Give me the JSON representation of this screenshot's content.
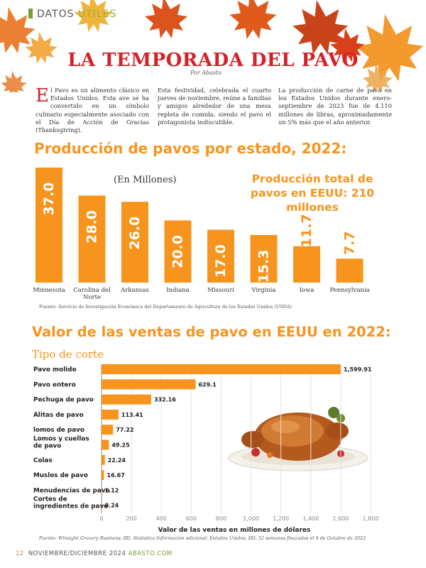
{
  "header": {
    "section_a": "DATOS ",
    "section_b": "ÚTILES",
    "title": "LA TEMPORADA DEL PAVO",
    "byline": "Por Abasto"
  },
  "intro": {
    "col1_cap": "E",
    "col1": "l Pavo es un alimento clásico en Estados Unidos. Esta ave se ha convertido en un símbolo culinario especialmente asociado con el Día de Acción de Gracias (Thanksgiving).",
    "col2": "Esta festividad, celebrada el cuarto jueves de noviembre, reúne a familias y amigos alrededor de una mesa repleta de comida, siendo el pavo el protagonista indiscutible.",
    "col3": "La producción de carne de pavo en los Estados Unidos durante enero-septiembre de 2023 fue de 4.110 millones de libras, aproximadamente un 5% más que el año anterior."
  },
  "colors": {
    "orange": "#f7941d",
    "red": "#d2232a",
    "green": "#7a9a3a"
  },
  "chart_data": [
    {
      "type": "bar",
      "title": "Producción de pavos por estado, 2022:",
      "unit_note": "(En Millones)",
      "total_note": "Producción total de pavos en EEUU: 210 millones",
      "categories": [
        "Minnesota",
        "Carolina del Norte",
        "Arkansas",
        "Indiana",
        "Missouri",
        "Virginia",
        "Iowa",
        "Pennsylvania"
      ],
      "values": [
        37.0,
        28.0,
        26.0,
        20.0,
        17.0,
        15.3,
        11.7,
        7.7
      ],
      "value_labels": [
        "37.0",
        "28.0",
        "26.0",
        "20.0",
        "17.0",
        "15.3",
        "11.7",
        "7.7"
      ],
      "source": "Fuente: Servicio de Investigación Económica del Departamento de Agricultura de los Estados Unidos (USDA)"
    },
    {
      "type": "bar",
      "orientation": "horizontal",
      "title": "Valor de las ventas de pavo en EEUU en 2022:",
      "subtitle": "Tipo de corte",
      "categories": [
        "Pavo molido",
        "Pavo entero",
        "Pechuga de pavo",
        "Alitas de pavo",
        "lomos de pavo",
        "Lomos y cuellos de pavo",
        "Colas",
        "Muslos de pavo",
        "Menudencias de pavo",
        "Cortes de ingredientes de pavo"
      ],
      "values": [
        1599.91,
        629.1,
        332.16,
        113.41,
        77.22,
        49.25,
        22.24,
        16.67,
        1.12,
        0.24
      ],
      "value_labels": [
        "1,599.91",
        "629.1",
        "332.16",
        "113.41",
        "77.22",
        "49.25",
        "22.24",
        "16.67",
        "1.12",
        "0.24"
      ],
      "xlabel": "Valor de las ventas en millones de dólares",
      "xlim": [
        0,
        1800
      ],
      "xticks": [
        "0",
        "200",
        "400",
        "600",
        "800",
        "1,000",
        "1,200",
        "1,400",
        "1,600",
        "1,800"
      ],
      "grid": true,
      "source": "Fuente: Winsight Grocery Business; IRI, Statistica Informacion adicional: Estados Unidos; IRI; 52 semanas finazadas el 9 de Octubre de 2022"
    }
  ],
  "footer": {
    "page": "12",
    "issue": "NOVIEMBRE/DICIEMBRE 2024 ",
    "site": "ABASTO.COM"
  }
}
